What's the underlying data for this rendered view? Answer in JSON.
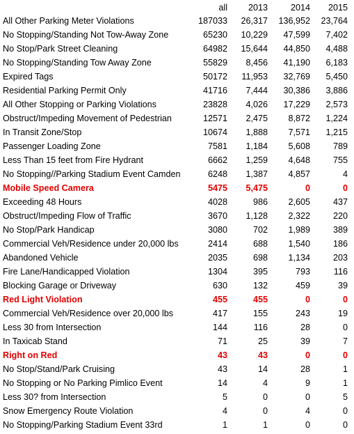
{
  "header": {
    "col_all": "all",
    "col_2013": "2013",
    "col_2014": "2014",
    "col_2015": "2015"
  },
  "rows": [
    {
      "name": "All Other Parking Meter Violations",
      "all": "187033",
      "y2013": "26,317",
      "y2014": "136,952",
      "y2015": "23,764",
      "highlight": false
    },
    {
      "name": "No Stopping/Standing Not Tow-Away Zone",
      "all": "65230",
      "y2013": "10,229",
      "y2014": "47,599",
      "y2015": "7,402",
      "highlight": false
    },
    {
      "name": "No Stop/Park Street Cleaning",
      "all": "64982",
      "y2013": "15,644",
      "y2014": "44,850",
      "y2015": "4,488",
      "highlight": false
    },
    {
      "name": "No Stopping/Standing Tow Away Zone",
      "all": "55829",
      "y2013": "8,456",
      "y2014": "41,190",
      "y2015": "6,183",
      "highlight": false
    },
    {
      "name": "Expired Tags",
      "all": "50172",
      "y2013": "11,953",
      "y2014": "32,769",
      "y2015": "5,450",
      "highlight": false
    },
    {
      "name": "Residential Parking Permit Only",
      "all": "41716",
      "y2013": "7,444",
      "y2014": "30,386",
      "y2015": "3,886",
      "highlight": false
    },
    {
      "name": "All Other Stopping or Parking Violations",
      "all": "23828",
      "y2013": "4,026",
      "y2014": "17,229",
      "y2015": "2,573",
      "highlight": false
    },
    {
      "name": "Obstruct/Impeding Movement of Pedestrian",
      "all": "12571",
      "y2013": "2,475",
      "y2014": "8,872",
      "y2015": "1,224",
      "highlight": false
    },
    {
      "name": "In Transit Zone/Stop",
      "all": "10674",
      "y2013": "1,888",
      "y2014": "7,571",
      "y2015": "1,215",
      "highlight": false
    },
    {
      "name": "Passenger Loading Zone",
      "all": "7581",
      "y2013": "1,184",
      "y2014": "5,608",
      "y2015": "789",
      "highlight": false
    },
    {
      "name": "Less Than 15 feet from Fire Hydrant",
      "all": "6662",
      "y2013": "1,259",
      "y2014": "4,648",
      "y2015": "755",
      "highlight": false
    },
    {
      "name": "No Stopping//Parking Stadium Event Camden",
      "all": "6248",
      "y2013": "1,387",
      "y2014": "4,857",
      "y2015": "4",
      "highlight": false
    },
    {
      "name": "Mobile Speed Camera",
      "all": "5475",
      "y2013": "5,475",
      "y2014": "0",
      "y2015": "0",
      "highlight": true
    },
    {
      "name": "Exceeding 48 Hours",
      "all": "4028",
      "y2013": "986",
      "y2014": "2,605",
      "y2015": "437",
      "highlight": false
    },
    {
      "name": "Obstruct/Impeding Flow of Traffic",
      "all": "3670",
      "y2013": "1,128",
      "y2014": "2,322",
      "y2015": "220",
      "highlight": false
    },
    {
      "name": "No Stop/Park Handicap",
      "all": "3080",
      "y2013": "702",
      "y2014": "1,989",
      "y2015": "389",
      "highlight": false
    },
    {
      "name": "Commercial Veh/Residence under 20,000 lbs",
      "all": "2414",
      "y2013": "688",
      "y2014": "1,540",
      "y2015": "186",
      "highlight": false
    },
    {
      "name": "Abandoned Vehicle",
      "all": "2035",
      "y2013": "698",
      "y2014": "1,134",
      "y2015": "203",
      "highlight": false
    },
    {
      "name": "Fire Lane/Handicapped Violation",
      "all": "1304",
      "y2013": "395",
      "y2014": "793",
      "y2015": "116",
      "highlight": false
    },
    {
      "name": "Blocking Garage or Driveway",
      "all": "630",
      "y2013": "132",
      "y2014": "459",
      "y2015": "39",
      "highlight": false
    },
    {
      "name": "Red Light Violation",
      "all": "455",
      "y2013": "455",
      "y2014": "0",
      "y2015": "0",
      "highlight": true
    },
    {
      "name": "Commercial Veh/Residence over 20,000 lbs",
      "all": "417",
      "y2013": "155",
      "y2014": "243",
      "y2015": "19",
      "highlight": false
    },
    {
      "name": "Less 30 from Intersection",
      "all": "144",
      "y2013": "116",
      "y2014": "28",
      "y2015": "0",
      "highlight": false
    },
    {
      "name": "In Taxicab Stand",
      "all": "71",
      "y2013": "25",
      "y2014": "39",
      "y2015": "7",
      "highlight": false
    },
    {
      "name": "Right on Red",
      "all": "43",
      "y2013": "43",
      "y2014": "0",
      "y2015": "0",
      "highlight": true
    },
    {
      "name": "No Stop/Stand/Park Cruising",
      "all": "43",
      "y2013": "14",
      "y2014": "28",
      "y2015": "1",
      "highlight": false
    },
    {
      "name": "No Stopping or No Parking Pimlico Event",
      "all": "14",
      "y2013": "4",
      "y2014": "9",
      "y2015": "1",
      "highlight": false
    },
    {
      "name": "Less 30? from Intersection",
      "all": "5",
      "y2013": "0",
      "y2014": "0",
      "y2015": "5",
      "highlight": false
    },
    {
      "name": "Snow Emergency Route Violation",
      "all": "4",
      "y2013": "0",
      "y2014": "4",
      "y2015": "0",
      "highlight": false
    },
    {
      "name": "No Stopping/Parking Stadium Event  33rd",
      "all": "1",
      "y2013": "1",
      "y2014": "0",
      "y2015": "0",
      "highlight": false
    }
  ],
  "colors": {
    "text": "#000000",
    "highlight": "#e00000",
    "background": "#ffffff"
  }
}
